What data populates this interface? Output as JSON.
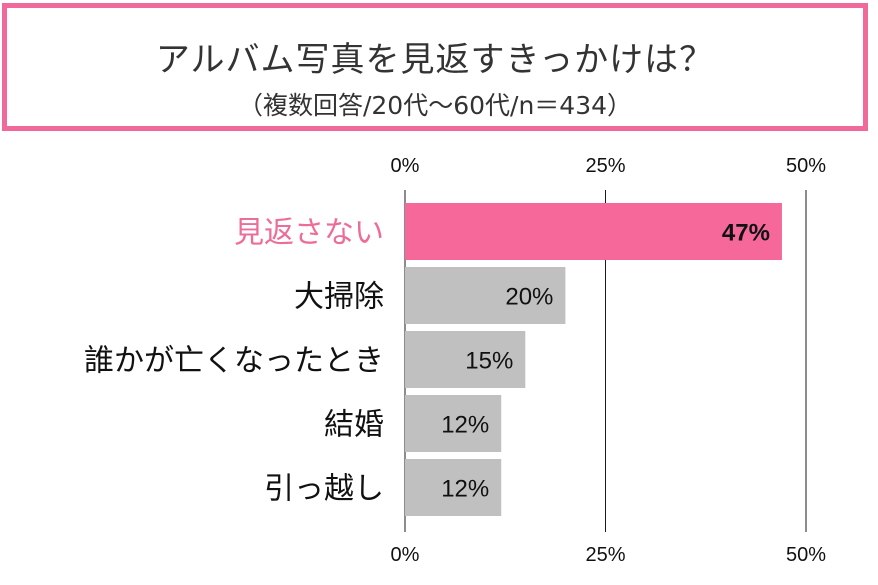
{
  "header": {
    "title": "アルバム写真を見返すきっかけは？",
    "subtitle": "（複数回答/20代〜60代/n＝434）"
  },
  "colors": {
    "highlight_bar": "#f6679a",
    "default_bar": "#c0c0c0",
    "highlight_label": "#ee6c98",
    "frame": "#f1699a"
  },
  "chart_data": {
    "type": "bar",
    "orientation": "horizontal",
    "categories": [
      "見返さない",
      "大掃除",
      "誰かが亡くなったとき",
      "結婚",
      "引っ越し"
    ],
    "values": [
      47,
      20,
      15,
      12,
      12
    ],
    "value_labels": [
      "47%",
      "20%",
      "15%",
      "12%",
      "12%"
    ],
    "highlight_index": 0,
    "xlim": [
      0,
      50
    ],
    "ticks": [
      0,
      25,
      50
    ],
    "tick_labels": [
      "0%",
      "25%",
      "50%"
    ],
    "grid": true
  }
}
